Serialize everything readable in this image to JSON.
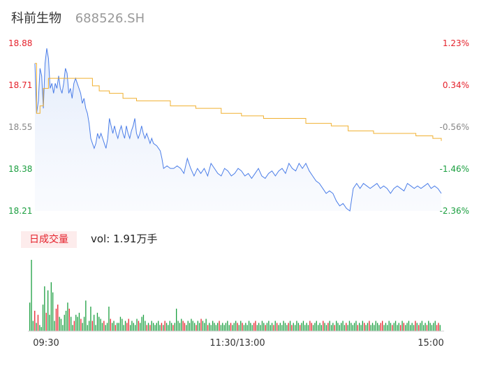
{
  "header": {
    "name": "科前生物",
    "code": "688526.SH"
  },
  "volume_panel": {
    "tab_label": "日成交量",
    "vol_prefix": "vol:",
    "vol_value": "1.91万手"
  },
  "colors": {
    "price_line": "#4a7de8",
    "avg_line": "#f0b030",
    "up": "#e5212b",
    "down": "#1a9e3f",
    "neutral": "#888888"
  },
  "chart_data": [
    {
      "type": "line",
      "title": "",
      "y_left_ticks": [
        "18.88",
        "18.71",
        "18.55",
        "18.38",
        "18.21"
      ],
      "y_right_ticks": [
        "1.23%",
        "0.34%",
        "-0.56%",
        "-1.46%",
        "-2.36%"
      ],
      "ylim": [
        18.21,
        18.88
      ],
      "x_ticks": [
        "09:30",
        "11:30/13:00",
        "15:00"
      ],
      "x_range_minutes": [
        0,
        240
      ],
      "series": [
        {
          "key": "price",
          "points": [
            [
              0,
              18.8
            ],
            [
              1,
              18.6
            ],
            [
              2,
              18.65
            ],
            [
              3,
              18.78
            ],
            [
              4,
              18.75
            ],
            [
              5,
              18.62
            ],
            [
              6,
              18.8
            ],
            [
              7,
              18.86
            ],
            [
              8,
              18.82
            ],
            [
              9,
              18.7
            ],
            [
              10,
              18.72
            ],
            [
              11,
              18.68
            ],
            [
              12,
              18.72
            ],
            [
              13,
              18.7
            ],
            [
              14,
              18.75
            ],
            [
              15,
              18.7
            ],
            [
              16,
              18.68
            ],
            [
              17,
              18.72
            ],
            [
              18,
              18.78
            ],
            [
              19,
              18.76
            ],
            [
              20,
              18.68
            ],
            [
              21,
              18.7
            ],
            [
              22,
              18.66
            ],
            [
              23,
              18.72
            ],
            [
              24,
              18.74
            ],
            [
              25,
              18.72
            ],
            [
              26,
              18.7
            ],
            [
              27,
              18.68
            ],
            [
              28,
              18.64
            ],
            [
              29,
              18.66
            ],
            [
              30,
              18.62
            ],
            [
              31,
              18.6
            ],
            [
              32,
              18.56
            ],
            [
              33,
              18.5
            ],
            [
              34,
              18.48
            ],
            [
              35,
              18.46
            ],
            [
              36,
              18.48
            ],
            [
              37,
              18.52
            ],
            [
              38,
              18.5
            ],
            [
              39,
              18.52
            ],
            [
              40,
              18.5
            ],
            [
              41,
              18.48
            ],
            [
              42,
              18.46
            ],
            [
              43,
              18.5
            ],
            [
              44,
              18.58
            ],
            [
              45,
              18.55
            ],
            [
              46,
              18.52
            ],
            [
              47,
              18.55
            ],
            [
              48,
              18.52
            ],
            [
              49,
              18.5
            ],
            [
              50,
              18.53
            ],
            [
              51,
              18.55
            ],
            [
              52,
              18.52
            ],
            [
              53,
              18.5
            ],
            [
              54,
              18.55
            ],
            [
              55,
              18.52
            ],
            [
              56,
              18.5
            ],
            [
              57,
              18.53
            ],
            [
              58,
              18.55
            ],
            [
              59,
              18.58
            ],
            [
              60,
              18.52
            ],
            [
              61,
              18.5
            ],
            [
              62,
              18.52
            ],
            [
              63,
              18.55
            ],
            [
              64,
              18.52
            ],
            [
              65,
              18.5
            ],
            [
              66,
              18.52
            ],
            [
              67,
              18.5
            ],
            [
              68,
              18.48
            ],
            [
              69,
              18.5
            ],
            [
              70,
              18.48
            ],
            [
              72,
              18.47
            ],
            [
              74,
              18.45
            ],
            [
              75,
              18.42
            ],
            [
              76,
              18.38
            ],
            [
              78,
              18.39
            ],
            [
              80,
              18.38
            ],
            [
              82,
              18.38
            ],
            [
              84,
              18.39
            ],
            [
              86,
              18.38
            ],
            [
              88,
              18.36
            ],
            [
              90,
              18.42
            ],
            [
              92,
              18.38
            ],
            [
              94,
              18.35
            ],
            [
              96,
              18.38
            ],
            [
              98,
              18.36
            ],
            [
              100,
              18.38
            ],
            [
              102,
              18.35
            ],
            [
              104,
              18.4
            ],
            [
              106,
              18.38
            ],
            [
              108,
              18.36
            ],
            [
              110,
              18.35
            ],
            [
              112,
              18.38
            ],
            [
              114,
              18.37
            ],
            [
              116,
              18.35
            ],
            [
              118,
              18.36
            ],
            [
              120,
              18.38
            ],
            [
              122,
              18.37
            ],
            [
              124,
              18.35
            ],
            [
              126,
              18.36
            ],
            [
              128,
              18.34
            ],
            [
              130,
              18.36
            ],
            [
              132,
              18.38
            ],
            [
              134,
              18.35
            ],
            [
              136,
              18.34
            ],
            [
              138,
              18.36
            ],
            [
              140,
              18.37
            ],
            [
              142,
              18.35
            ],
            [
              144,
              18.37
            ],
            [
              146,
              18.38
            ],
            [
              148,
              18.36
            ],
            [
              150,
              18.4
            ],
            [
              152,
              18.38
            ],
            [
              154,
              18.37
            ],
            [
              156,
              18.4
            ],
            [
              158,
              18.38
            ],
            [
              160,
              18.4
            ],
            [
              162,
              18.37
            ],
            [
              164,
              18.35
            ],
            [
              166,
              18.33
            ],
            [
              168,
              18.32
            ],
            [
              170,
              18.3
            ],
            [
              172,
              18.28
            ],
            [
              174,
              18.29
            ],
            [
              176,
              18.28
            ],
            [
              178,
              18.25
            ],
            [
              180,
              18.23
            ],
            [
              182,
              18.24
            ],
            [
              184,
              18.22
            ],
            [
              186,
              18.21
            ],
            [
              188,
              18.3
            ],
            [
              190,
              18.32
            ],
            [
              192,
              18.3
            ],
            [
              194,
              18.32
            ],
            [
              196,
              18.31
            ],
            [
              198,
              18.3
            ],
            [
              200,
              18.31
            ],
            [
              202,
              18.32
            ],
            [
              204,
              18.3
            ],
            [
              206,
              18.31
            ],
            [
              208,
              18.3
            ],
            [
              210,
              18.28
            ],
            [
              212,
              18.3
            ],
            [
              214,
              18.31
            ],
            [
              216,
              18.3
            ],
            [
              218,
              18.29
            ],
            [
              220,
              18.32
            ],
            [
              222,
              18.31
            ],
            [
              224,
              18.3
            ],
            [
              226,
              18.31
            ],
            [
              228,
              18.3
            ],
            [
              230,
              18.31
            ],
            [
              232,
              18.32
            ],
            [
              234,
              18.3
            ],
            [
              236,
              18.31
            ],
            [
              238,
              18.3
            ],
            [
              240,
              18.28
            ]
          ]
        },
        {
          "key": "average",
          "points": [
            [
              0,
              18.8
            ],
            [
              1,
              18.6
            ],
            [
              3,
              18.63
            ],
            [
              5,
              18.7
            ],
            [
              8,
              18.74
            ],
            [
              12,
              18.74
            ],
            [
              30,
              18.74
            ],
            [
              34,
              18.71
            ],
            [
              38,
              18.69
            ],
            [
              44,
              18.68
            ],
            [
              52,
              18.66
            ],
            [
              60,
              18.65
            ],
            [
              70,
              18.65
            ],
            [
              80,
              18.63
            ],
            [
              95,
              18.62
            ],
            [
              110,
              18.6
            ],
            [
              122,
              18.59
            ],
            [
              135,
              18.58
            ],
            [
              160,
              18.56
            ],
            [
              175,
              18.55
            ],
            [
              185,
              18.53
            ],
            [
              200,
              18.52
            ],
            [
              225,
              18.51
            ],
            [
              235,
              18.5
            ],
            [
              240,
              18.49
            ]
          ]
        }
      ]
    },
    {
      "type": "bar",
      "title": "",
      "series": [
        {
          "key": "volume",
          "values": [
            1.4,
            3.5,
            0.5,
            1.0,
            0.4,
            0.8,
            0.3,
            0.2,
            1.3,
            2.2,
            0.9,
            2.0,
            0.8,
            2.4,
            1.9,
            0.5,
            1.1,
            1.3,
            0.7,
            0.6,
            0.3,
            0.8,
            1.0,
            1.4,
            1.1,
            0.7,
            0.3,
            0.5,
            0.8,
            0.7,
            0.9,
            0.6,
            0.4,
            0.7,
            1.5,
            0.3,
            0.5,
            1.2,
            0.5,
            0.8,
            0.3,
            0.9,
            0.7,
            0.6,
            0.4,
            0.5,
            0.3,
            0.4,
            1.2,
            0.6,
            0.4,
            0.5,
            0.3,
            0.4,
            0.4,
            0.7,
            0.6,
            0.3,
            0.5,
            0.4,
            0.6,
            0.3,
            0.5,
            0.4,
            0.3,
            0.6,
            0.5,
            0.4,
            0.7,
            0.8,
            0.5,
            0.3,
            0.4,
            0.3,
            0.5,
            0.4,
            0.3,
            0.4,
            0.5,
            0.3,
            0.4,
            0.3,
            0.5,
            0.4,
            0.3,
            0.5,
            0.4,
            0.3,
            0.4,
            1.1,
            0.5,
            0.4,
            0.6,
            0.5,
            0.4,
            0.3,
            0.5,
            0.4,
            0.6,
            0.5,
            0.4,
            0.3,
            0.5,
            0.4,
            0.6,
            0.5,
            0.4,
            0.6,
            0.3,
            0.4,
            0.3,
            0.5,
            0.4,
            0.3,
            0.4,
            0.5,
            0.3,
            0.4,
            0.3,
            0.4,
            0.5,
            0.3,
            0.4,
            0.3,
            0.4,
            0.5,
            0.4,
            0.3,
            0.5,
            0.4,
            0.3,
            0.4,
            0.3,
            0.5,
            0.4,
            0.3,
            0.4,
            0.5,
            0.3,
            0.4,
            0.3,
            0.5,
            0.4,
            0.3,
            0.4,
            0.5,
            0.3,
            0.4,
            0.3,
            0.5,
            0.4,
            0.3,
            0.4,
            0.3,
            0.5,
            0.4,
            0.3,
            0.4,
            0.5,
            0.3,
            0.4,
            0.3,
            0.5,
            0.4,
            0.3,
            0.4,
            0.5,
            0.3,
            0.4,
            0.3,
            0.5,
            0.4,
            0.3,
            0.4,
            0.5,
            0.3,
            0.4,
            0.3,
            0.5,
            0.4,
            0.3,
            0.4,
            0.5,
            0.3,
            0.4,
            0.3,
            0.5,
            0.4,
            0.3,
            0.4,
            0.5,
            0.3,
            0.4,
            0.3,
            0.5,
            0.4,
            0.3,
            0.4,
            0.5,
            0.3,
            0.4,
            0.3,
            0.5,
            0.4,
            0.3,
            0.4,
            0.5,
            0.3,
            0.4,
            0.3,
            0.5,
            0.4,
            0.3,
            0.4,
            0.5,
            0.3,
            0.4,
            0.3,
            0.5,
            0.4,
            0.3,
            0.4,
            0.5,
            0.3,
            0.4,
            0.3,
            0.5,
            0.4,
            0.3,
            0.4,
            0.5,
            0.3,
            0.4,
            0.3,
            0.5,
            0.4,
            0.3,
            0.4,
            0.5,
            0.3,
            0.4,
            0.3,
            0.5,
            0.4,
            0.3,
            0.4,
            0.5,
            0.3,
            0.4,
            0.3
          ]
        }
      ]
    }
  ]
}
